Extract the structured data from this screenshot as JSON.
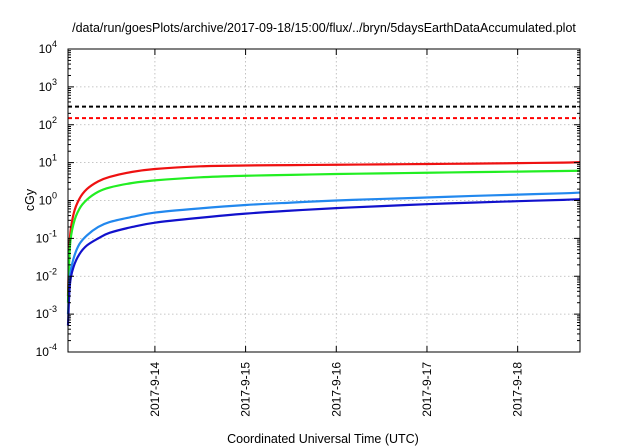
{
  "chart_data": {
    "type": "line",
    "title": "/data/run/goesPlots/archive/2017-09-18/15:00/flux/../bryn/5daysEarthDataAccumulated.plot",
    "xlabel": "Coordinated Universal Time (UTC)",
    "ylabel": "cGy",
    "y_scale": "log",
    "ylim": [
      0.0001,
      10000
    ],
    "xlim": [
      "2017-09-13 01:00",
      "2017-09-18 16:30"
    ],
    "grid": true,
    "x_ticks": [
      "2017-9-14",
      "2017-9-15",
      "2017-9-16",
      "2017-9-17",
      "2017-9-18"
    ],
    "y_ticks": [
      {
        "base": "10",
        "exp": "-4"
      },
      {
        "base": "10",
        "exp": "-3"
      },
      {
        "base": "10",
        "exp": "-2"
      },
      {
        "base": "10",
        "exp": "-1"
      },
      {
        "base": "10",
        "exp": "0"
      },
      {
        "base": "10",
        "exp": "1"
      },
      {
        "base": "10",
        "exp": "2"
      },
      {
        "base": "10",
        "exp": "3"
      },
      {
        "base": "10",
        "exp": "4"
      }
    ],
    "reference_lines": [
      {
        "y": 300,
        "color": "#000000",
        "style": "dashed"
      },
      {
        "y": 150,
        "color": "#ff0000",
        "style": "dashed"
      }
    ],
    "series": [
      {
        "color": "#ee1111",
        "x": [
          "2017-09-13 01:00",
          "2017-09-13 01:30",
          "2017-09-13 02:30",
          "2017-09-13 04:00",
          "2017-09-13 06:00",
          "2017-09-13 09:00",
          "2017-09-13 12:00",
          "2017-09-13 18:00",
          "2017-09-14 00:00",
          "2017-09-14 12:00",
          "2017-09-15 00:00",
          "2017-09-15 12:00",
          "2017-09-16 00:00",
          "2017-09-16 12:00",
          "2017-09-17 00:00",
          "2017-09-17 12:00",
          "2017-09-18 00:00",
          "2017-09-18 12:00",
          "2017-09-18 16:30"
        ],
        "y": [
          0.003,
          0.1,
          0.45,
          1.1,
          2,
          3.2,
          4.2,
          5.7,
          6.8,
          8,
          8.4,
          8.6,
          8.8,
          9,
          9.2,
          9.4,
          9.7,
          10,
          10.3
        ]
      },
      {
        "color": "#22ee22",
        "x": [
          "2017-09-13 01:00",
          "2017-09-13 01:30",
          "2017-09-13 02:30",
          "2017-09-13 04:00",
          "2017-09-13 06:00",
          "2017-09-13 09:00",
          "2017-09-13 12:00",
          "2017-09-13 18:00",
          "2017-09-14 00:00",
          "2017-09-14 12:00",
          "2017-09-15 00:00",
          "2017-09-15 12:00",
          "2017-09-16 00:00",
          "2017-09-16 12:00",
          "2017-09-17 00:00",
          "2017-09-17 12:00",
          "2017-09-18 00:00",
          "2017-09-18 12:00",
          "2017-09-18 16:30"
        ],
        "y": [
          0.002,
          0.06,
          0.25,
          0.6,
          1.05,
          1.7,
          2.2,
          2.9,
          3.4,
          4.1,
          4.5,
          4.75,
          5,
          5.2,
          5.4,
          5.6,
          5.8,
          6,
          6.1
        ]
      },
      {
        "color": "#2288ee",
        "x": [
          "2017-09-13 01:00",
          "2017-09-13 01:30",
          "2017-09-13 02:30",
          "2017-09-13 04:00",
          "2017-09-13 06:00",
          "2017-09-13 09:00",
          "2017-09-13 12:00",
          "2017-09-13 18:00",
          "2017-09-14 00:00",
          "2017-09-14 12:00",
          "2017-09-15 00:00",
          "2017-09-15 12:00",
          "2017-09-16 00:00",
          "2017-09-16 12:00",
          "2017-09-17 00:00",
          "2017-09-17 12:00",
          "2017-09-18 00:00",
          "2017-09-18 12:00",
          "2017-09-18 16:30"
        ],
        "y": [
          0.001,
          0.01,
          0.03,
          0.07,
          0.12,
          0.2,
          0.27,
          0.37,
          0.48,
          0.62,
          0.76,
          0.88,
          1,
          1.1,
          1.2,
          1.32,
          1.43,
          1.55,
          1.62
        ]
      },
      {
        "color": "#1111cc",
        "x": [
          "2017-09-13 01:00",
          "2017-09-13 01:30",
          "2017-09-13 02:30",
          "2017-09-13 04:00",
          "2017-09-13 06:00",
          "2017-09-13 09:00",
          "2017-09-13 12:00",
          "2017-09-13 18:00",
          "2017-09-14 00:00",
          "2017-09-14 12:00",
          "2017-09-15 00:00",
          "2017-09-15 12:00",
          "2017-09-16 00:00",
          "2017-09-16 12:00",
          "2017-09-17 00:00",
          "2017-09-17 12:00",
          "2017-09-18 00:00",
          "2017-09-18 12:00",
          "2017-09-18 16:30"
        ],
        "y": [
          0.0005,
          0.006,
          0.018,
          0.038,
          0.065,
          0.1,
          0.14,
          0.2,
          0.26,
          0.35,
          0.45,
          0.54,
          0.63,
          0.71,
          0.8,
          0.88,
          0.96,
          1.04,
          1.08
        ]
      }
    ]
  }
}
